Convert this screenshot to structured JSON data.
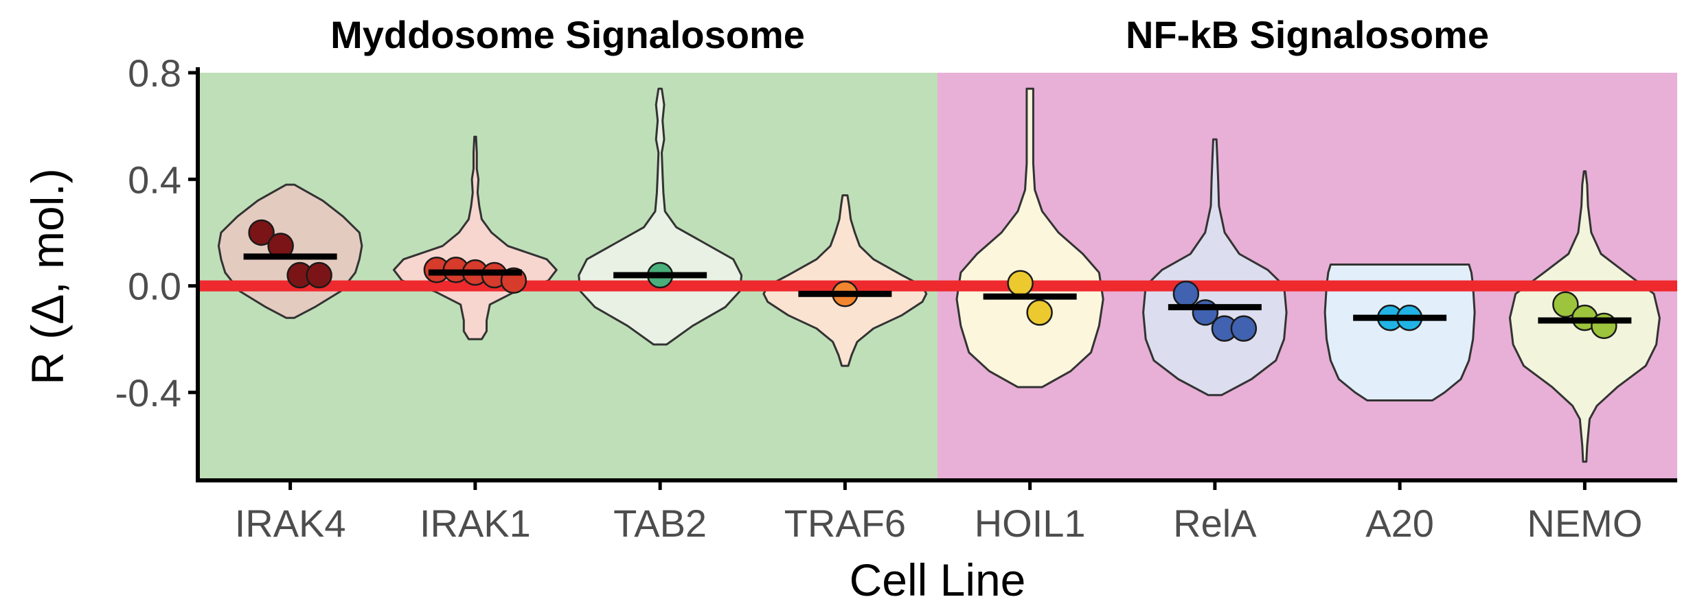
{
  "chart_data": {
    "type": "violin",
    "xlabel": "Cell Line",
    "ylabel": "R (Δ, mol.)",
    "ylim": [
      -0.73,
      0.8
    ],
    "yticks": [
      "0.8",
      "0.4",
      "0.0",
      "-0.4"
    ],
    "yticks_values": [
      0.8,
      0.4,
      0.0,
      -0.4
    ],
    "reference_line": {
      "y": 0.0,
      "color": "#ee2a2e"
    },
    "grid": false,
    "groups": [
      {
        "title": "Myddosome Signalosome",
        "background": "#bfdfb8",
        "categories": [
          "IRAK4",
          "IRAK1",
          "TAB2",
          "TRAF6"
        ]
      },
      {
        "title": "NF-kB Signalosome",
        "background": "#e8b0d6",
        "categories": [
          "HOIL1",
          "RelA",
          "A20",
          "NEMO"
        ]
      }
    ],
    "categories": [
      "IRAK4",
      "IRAK1",
      "TAB2",
      "TRAF6",
      "HOIL1",
      "RelA",
      "A20",
      "NEMO"
    ],
    "series": [
      {
        "category": "IRAK4",
        "fill": "#e4cbc0",
        "point_color": "#7b1416",
        "mean": 0.11,
        "points": [
          0.2,
          0.15,
          0.04,
          0.04
        ],
        "density": [
          [
            -0.12,
            0.05
          ],
          [
            -0.08,
            0.3
          ],
          [
            -0.02,
            0.62
          ],
          [
            0.05,
            0.8
          ],
          [
            0.1,
            0.85
          ],
          [
            0.15,
            0.88
          ],
          [
            0.2,
            0.85
          ],
          [
            0.26,
            0.65
          ],
          [
            0.32,
            0.4
          ],
          [
            0.38,
            0.05
          ]
        ]
      },
      {
        "category": "IRAK1",
        "fill": "#f6d6cf",
        "point_color": "#d63b2b",
        "mean": 0.05,
        "points": [
          0.06,
          0.06,
          0.05,
          0.04,
          0.02
        ],
        "density": [
          [
            -0.2,
            0.08
          ],
          [
            -0.17,
            0.14
          ],
          [
            -0.13,
            0.14
          ],
          [
            -0.07,
            0.18
          ],
          [
            -0.02,
            0.5
          ],
          [
            0.02,
            0.9
          ],
          [
            0.06,
            1.0
          ],
          [
            0.1,
            0.88
          ],
          [
            0.15,
            0.4
          ],
          [
            0.2,
            0.2
          ],
          [
            0.25,
            0.08
          ],
          [
            0.3,
            0.05
          ],
          [
            0.35,
            0.03
          ],
          [
            0.4,
            0.04
          ],
          [
            0.44,
            0.02
          ],
          [
            0.5,
            0.02
          ],
          [
            0.56,
            0.01
          ]
        ]
      },
      {
        "category": "TAB2",
        "fill": "#e8f1e4",
        "point_color": "#4aaf7a",
        "mean": 0.04,
        "points": [
          0.04
        ],
        "density": [
          [
            -0.22,
            0.08
          ],
          [
            -0.15,
            0.4
          ],
          [
            -0.08,
            0.8
          ],
          [
            -0.02,
            0.98
          ],
          [
            0.04,
            1.0
          ],
          [
            0.1,
            0.9
          ],
          [
            0.16,
            0.55
          ],
          [
            0.22,
            0.2
          ],
          [
            0.28,
            0.06
          ],
          [
            0.35,
            0.04
          ],
          [
            0.42,
            0.03
          ],
          [
            0.5,
            0.02
          ],
          [
            0.55,
            0.05
          ],
          [
            0.62,
            0.03
          ],
          [
            0.68,
            0.05
          ],
          [
            0.74,
            0.02
          ]
        ]
      },
      {
        "category": "TRAF6",
        "fill": "#fbe3d2",
        "point_color": "#f2852f",
        "mean": -0.03,
        "points": [
          -0.03
        ],
        "density": [
          [
            -0.3,
            0.04
          ],
          [
            -0.26,
            0.08
          ],
          [
            -0.21,
            0.15
          ],
          [
            -0.16,
            0.35
          ],
          [
            -0.11,
            0.7
          ],
          [
            -0.06,
            0.95
          ],
          [
            -0.03,
            1.0
          ],
          [
            0.0,
            0.95
          ],
          [
            0.04,
            0.7
          ],
          [
            0.1,
            0.35
          ],
          [
            0.15,
            0.18
          ],
          [
            0.2,
            0.12
          ],
          [
            0.25,
            0.07
          ],
          [
            0.3,
            0.05
          ],
          [
            0.34,
            0.03
          ]
        ]
      },
      {
        "category": "HOIL1",
        "fill": "#fbf6dc",
        "point_color": "#ecc92e",
        "mean": -0.04,
        "points": [
          0.01,
          -0.1
        ],
        "density": [
          [
            -0.38,
            0.15
          ],
          [
            -0.32,
            0.5
          ],
          [
            -0.25,
            0.75
          ],
          [
            -0.15,
            0.85
          ],
          [
            -0.05,
            0.9
          ],
          [
            0.05,
            0.85
          ],
          [
            0.12,
            0.65
          ],
          [
            0.2,
            0.35
          ],
          [
            0.28,
            0.15
          ],
          [
            0.36,
            0.06
          ],
          [
            0.46,
            0.04
          ],
          [
            0.56,
            0.04
          ],
          [
            0.66,
            0.04
          ],
          [
            0.74,
            0.04
          ]
        ]
      },
      {
        "category": "RelA",
        "fill": "#dcdef0",
        "point_color": "#4062b0",
        "mean": -0.08,
        "points": [
          -0.03,
          -0.1,
          -0.16,
          -0.16
        ],
        "density": [
          [
            -0.41,
            0.08
          ],
          [
            -0.35,
            0.45
          ],
          [
            -0.28,
            0.75
          ],
          [
            -0.2,
            0.85
          ],
          [
            -0.1,
            0.88
          ],
          [
            0.0,
            0.85
          ],
          [
            0.06,
            0.65
          ],
          [
            0.12,
            0.3
          ],
          [
            0.2,
            0.12
          ],
          [
            0.3,
            0.05
          ],
          [
            0.4,
            0.04
          ],
          [
            0.48,
            0.03
          ],
          [
            0.55,
            0.02
          ]
        ]
      },
      {
        "category": "A20",
        "fill": "#e2eefa",
        "point_color": "#21b3e6",
        "mean": -0.12,
        "points": [
          -0.12,
          -0.12
        ],
        "density": [
          [
            -0.43,
            0.4
          ],
          [
            -0.4,
            0.55
          ],
          [
            -0.35,
            0.75
          ],
          [
            -0.28,
            0.85
          ],
          [
            -0.2,
            0.9
          ],
          [
            -0.1,
            0.92
          ],
          [
            0.0,
            0.9
          ],
          [
            0.05,
            0.88
          ],
          [
            0.08,
            0.85
          ]
        ]
      },
      {
        "category": "NEMO",
        "fill": "#f2f5dc",
        "point_color": "#9cc43c",
        "mean": -0.13,
        "points": [
          -0.07,
          -0.12,
          -0.15
        ],
        "density": [
          [
            -0.66,
            0.02
          ],
          [
            -0.6,
            0.03
          ],
          [
            -0.5,
            0.06
          ],
          [
            -0.45,
            0.15
          ],
          [
            -0.38,
            0.4
          ],
          [
            -0.3,
            0.75
          ],
          [
            -0.22,
            0.88
          ],
          [
            -0.12,
            0.92
          ],
          [
            -0.03,
            0.85
          ],
          [
            0.05,
            0.5
          ],
          [
            0.12,
            0.2
          ],
          [
            0.2,
            0.08
          ],
          [
            0.3,
            0.04
          ],
          [
            0.38,
            0.03
          ],
          [
            0.43,
            0.01
          ]
        ]
      }
    ]
  }
}
